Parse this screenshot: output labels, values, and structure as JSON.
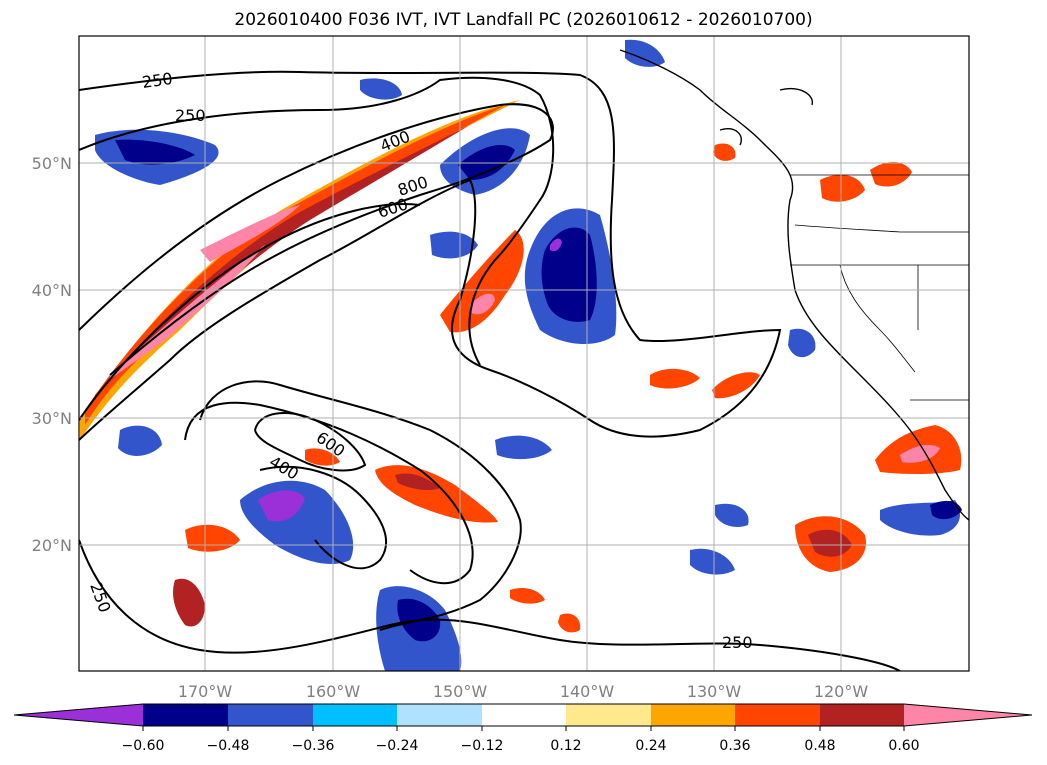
{
  "title": "2026010400 F036 IVT, IVT Landfall PC (2026010612 - 2026010700)",
  "map": {
    "lat_labels": [
      "50°N",
      "40°N",
      "30°N",
      "20°N"
    ],
    "lon_labels": [
      "170°W",
      "160°W",
      "150°W",
      "140°W",
      "130°W",
      "120°W"
    ],
    "label_color": "#808080",
    "grid": true
  },
  "contours": {
    "color": "#000000",
    "labels": [
      "250",
      "250",
      "400",
      "800",
      "600",
      "600",
      "400",
      "250",
      "250"
    ]
  },
  "colorbar": {
    "ticks": [
      "−0.60",
      "−0.48",
      "−0.36",
      "−0.24",
      "−0.12",
      "0.12",
      "0.24",
      "0.36",
      "0.48",
      "0.60"
    ],
    "colors": [
      "#9b30d8",
      "#00008b",
      "#3355cc",
      "#00bfff",
      "#b0e2ff",
      "#ffffff",
      "#ffe98c",
      "#ffa500",
      "#ff4500",
      "#b22222",
      "#ff85a8"
    ],
    "extend": "both"
  }
}
